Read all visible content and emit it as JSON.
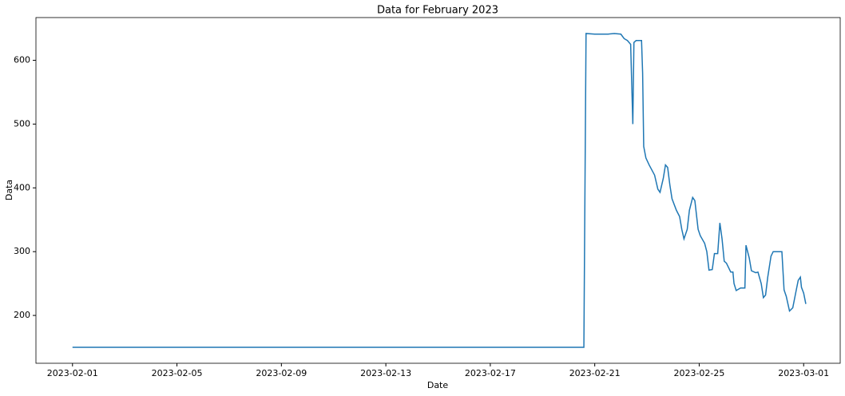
{
  "chart_data": {
    "type": "line",
    "title": "Data for February 2023",
    "x_label": "Date",
    "y_label": "Data",
    "color": "#1f77b4",
    "grid": false,
    "x": [
      "2023-02-01 00:00",
      "2023-02-20 14:00",
      "2023-02-20 16:00",
      "2023-02-21 00:00",
      "2023-02-21 12:00",
      "2023-02-21 18:00",
      "2023-02-22 00:00",
      "2023-02-22 03:00",
      "2023-02-22 06:00",
      "2023-02-22 09:00",
      "2023-02-22 11:00",
      "2023-02-22 12:00",
      "2023-02-22 14:00",
      "2023-02-22 19:00",
      "2023-02-22 20:00",
      "2023-02-22 21:00",
      "2023-02-22 23:00",
      "2023-02-23 02:00",
      "2023-02-23 07:00",
      "2023-02-23 10:00",
      "2023-02-23 12:00",
      "2023-02-23 15:00",
      "2023-02-23 17:00",
      "2023-02-23 19:00",
      "2023-02-23 21:00",
      "2023-02-23 23:00",
      "2023-02-24 03:00",
      "2023-02-24 06:00",
      "2023-02-24 08:00",
      "2023-02-24 10:00",
      "2023-02-24 13:00",
      "2023-02-24 15:00",
      "2023-02-24 18:00",
      "2023-02-24 20:00",
      "2023-02-24 23:00",
      "2023-02-25 01:00",
      "2023-02-25 05:00",
      "2023-02-25 07:00",
      "2023-02-25 09:00",
      "2023-02-25 12:00",
      "2023-02-25 14:00",
      "2023-02-25 17:00",
      "2023-02-25 19:00",
      "2023-02-25 21:00",
      "2023-02-25 23:00",
      "2023-02-26 01:00",
      "2023-02-26 05:00",
      "2023-02-26 07:00",
      "2023-02-26 08:00",
      "2023-02-26 10:00",
      "2023-02-26 14:00",
      "2023-02-26 18:00",
      "2023-02-26 19:00",
      "2023-02-26 22:00",
      "2023-02-27 00:00",
      "2023-02-27 04:00",
      "2023-02-27 06:00",
      "2023-02-27 09:00",
      "2023-02-27 11:00",
      "2023-02-27 13:00",
      "2023-02-27 15:00",
      "2023-02-27 18:00",
      "2023-02-27 20:00",
      "2023-02-28 04:00",
      "2023-02-28 06:00",
      "2023-02-28 08:00",
      "2023-02-28 11:00",
      "2023-02-28 14:00",
      "2023-02-28 17:00",
      "2023-02-28 19:00",
      "2023-02-28 21:00",
      "2023-02-28 22:00",
      "2023-03-01 00:00",
      "2023-03-01 02:00"
    ],
    "values": [
      150,
      150,
      642,
      641,
      641,
      642,
      641,
      634,
      631,
      625,
      500,
      628,
      631,
      631,
      580,
      465,
      447,
      436,
      420,
      398,
      393,
      415,
      436,
      432,
      405,
      383,
      365,
      355,
      335,
      320,
      335,
      365,
      385,
      380,
      335,
      325,
      313,
      300,
      271,
      272,
      297,
      297,
      345,
      320,
      285,
      282,
      268,
      268,
      250,
      239,
      243,
      243,
      310,
      290,
      270,
      267,
      268,
      250,
      228,
      232,
      260,
      293,
      300,
      300,
      240,
      230,
      207,
      212,
      238,
      255,
      260,
      244,
      235,
      218
    ],
    "xlim": [
      "2023-01-30 14:24",
      "2023-03-02 09:36"
    ],
    "xticks": [
      "2023-02-01",
      "2023-02-05",
      "2023-02-09",
      "2023-02-13",
      "2023-02-17",
      "2023-02-21",
      "2023-02-25",
      "2023-03-01"
    ],
    "ylim": [
      125,
      667
    ],
    "yticks": [
      200,
      300,
      400,
      500,
      600
    ]
  }
}
